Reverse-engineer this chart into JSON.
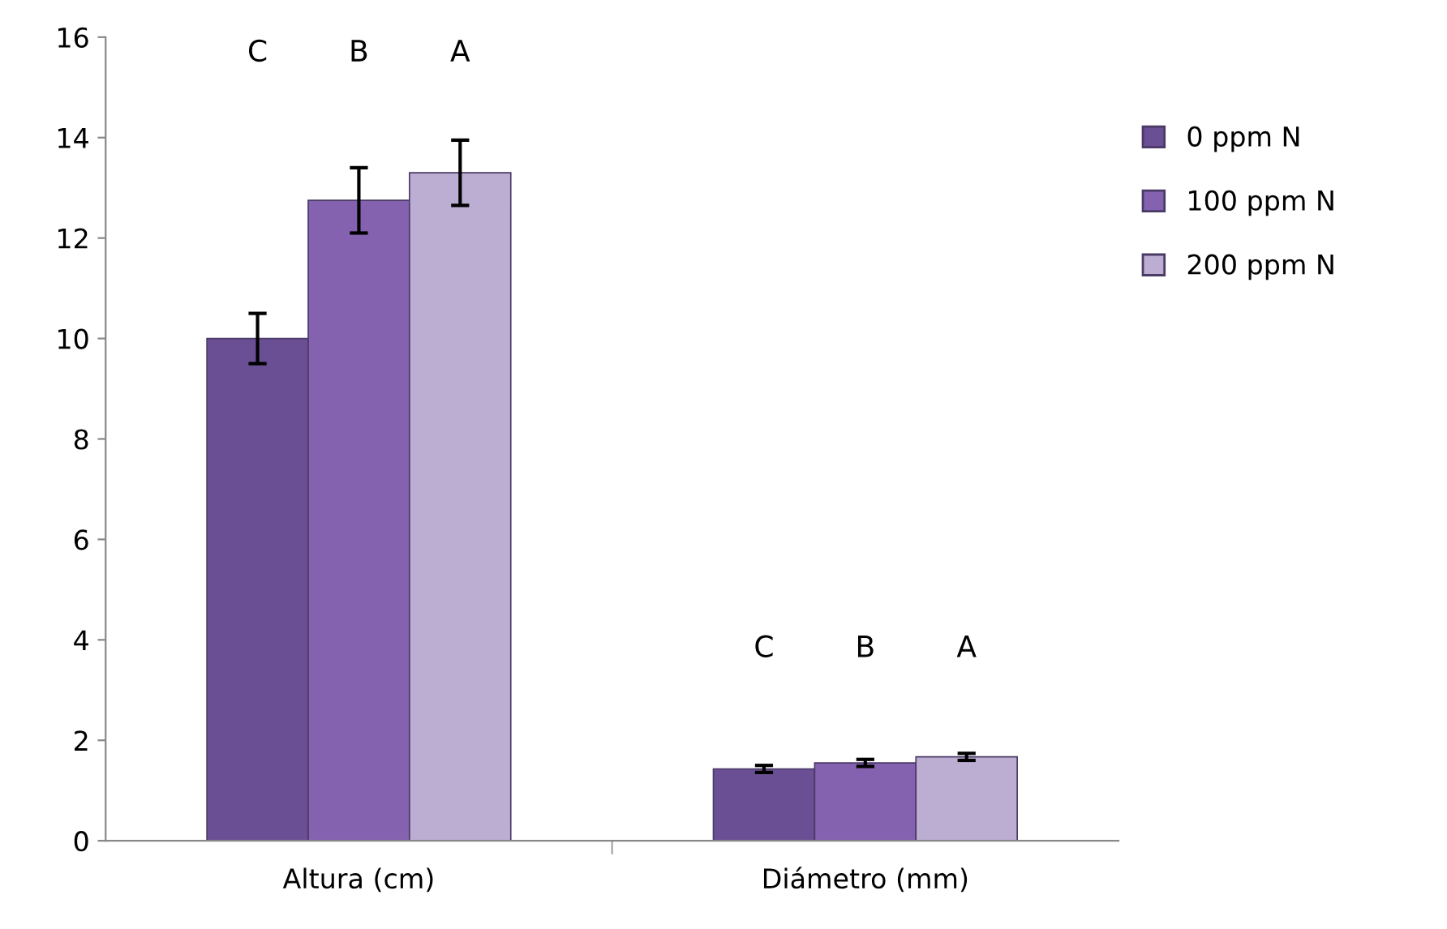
{
  "chart_data": {
    "type": "bar",
    "categories": [
      "Altura (cm)",
      "Diámetro (mm)"
    ],
    "series": [
      {
        "name": "0 ppm N",
        "color": "#6a4f94",
        "values": [
          10.0,
          1.43
        ],
        "errors": [
          0.5,
          0.07
        ]
      },
      {
        "name": "100 ppm N",
        "color": "#8562b0",
        "values": [
          12.75,
          1.55
        ],
        "errors": [
          0.65,
          0.07
        ]
      },
      {
        "name": "200 ppm N",
        "color": "#bcaed2",
        "values": [
          13.3,
          1.67
        ],
        "errors": [
          0.65,
          0.07
        ]
      }
    ],
    "annotations": [
      "C",
      "B",
      "A",
      "C",
      "B",
      "A"
    ],
    "ylim": [
      0,
      16
    ],
    "yticks": [
      0,
      2,
      4,
      6,
      8,
      10,
      12,
      14,
      16
    ],
    "grid": false,
    "legend": "top right"
  }
}
